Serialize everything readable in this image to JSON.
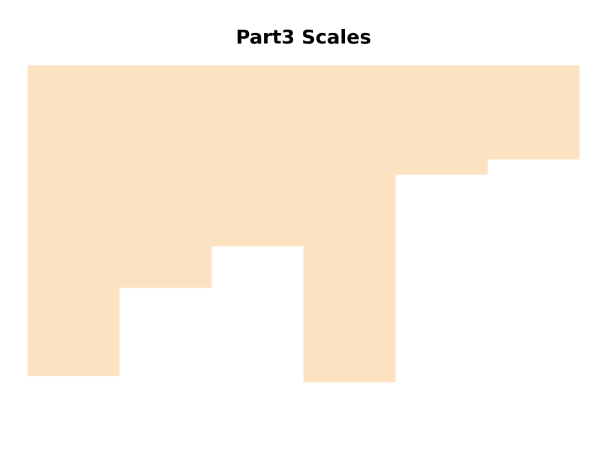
{
  "chart_data": {
    "type": "bar",
    "title": "Part3 Scales",
    "categories": [
      "",
      "",
      "",
      "",
      "",
      ""
    ],
    "values": [
      450,
      322,
      262,
      459,
      158,
      136
    ],
    "xlabel": "",
    "ylabel": "",
    "ylim": [
      0,
      460
    ],
    "y_axis_inverted": true,
    "axes_visible": false,
    "grid": false,
    "bar_color": "#fde2c1"
  }
}
